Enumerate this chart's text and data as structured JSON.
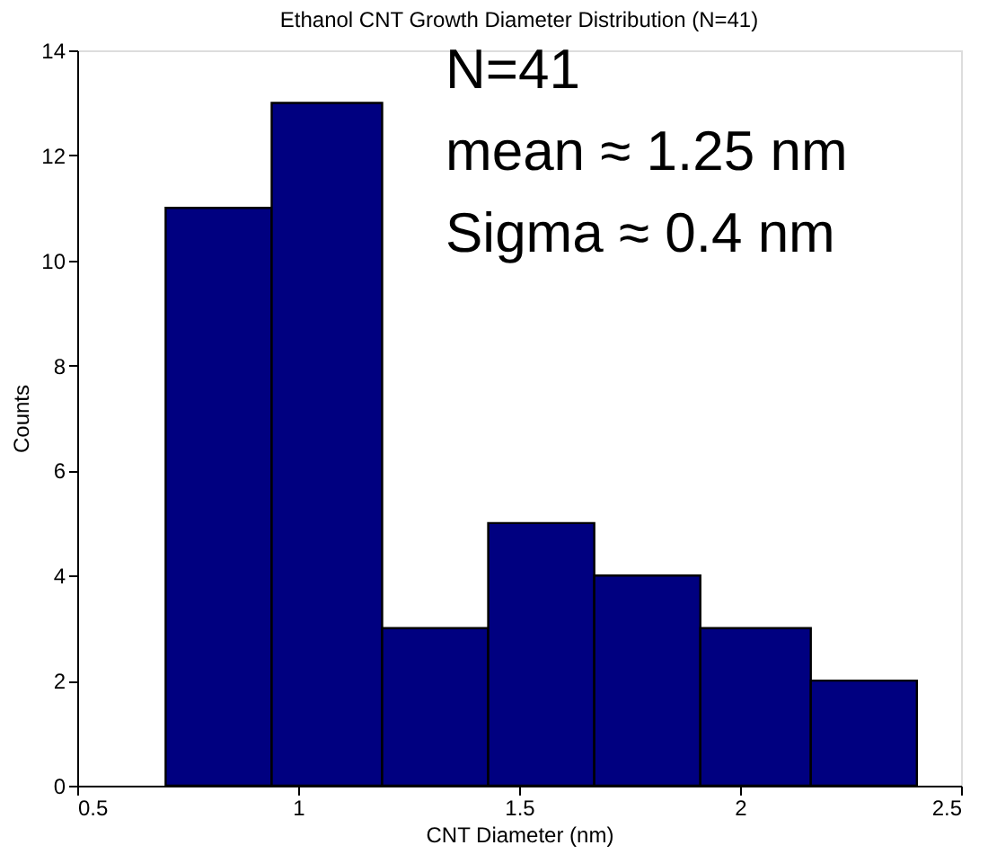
{
  "chart_data": {
    "type": "histogram",
    "title": "Ethanol CNT Growth Diameter Distribution (N=41)",
    "xlabel": "CNT Diameter (nm)",
    "ylabel": "Counts",
    "bins": [
      0.7,
      0.94,
      1.19,
      1.43,
      1.67,
      1.91,
      2.16,
      2.4
    ],
    "values": [
      11,
      13,
      3,
      5,
      4,
      3,
      2
    ],
    "color": "#000080",
    "xlim": [
      0.5,
      2.5
    ],
    "xticks": [
      0.5,
      1,
      1.5,
      2,
      2.5
    ],
    "ylim": [
      0,
      14
    ],
    "yticks": [
      0,
      2,
      4,
      6,
      8,
      10,
      12,
      14
    ],
    "grid": false,
    "annotations": [
      "N=41",
      "mean ≈ 1.25 nm",
      "Sigma ≈ 0.4 nm"
    ]
  }
}
